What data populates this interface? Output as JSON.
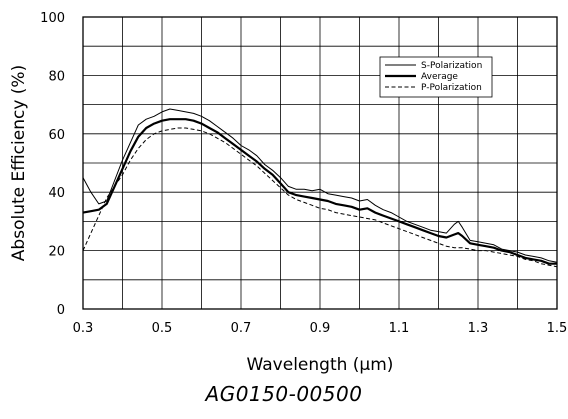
{
  "chart_data": {
    "type": "line",
    "title": "",
    "xlabel": "Wavelength (µm)",
    "ylabel": "Absolute Efficiency (%)",
    "xlim": [
      0.3,
      1.5
    ],
    "ylim": [
      0,
      100
    ],
    "xticks": [
      "0.3",
      "0.5",
      "0.7",
      "0.9",
      "1.1",
      "1.3",
      "1.5"
    ],
    "yticks": [
      "0",
      "20",
      "40",
      "60",
      "80",
      "100"
    ],
    "grid": true,
    "legend_position": "top-right",
    "series": [
      {
        "name": "S-Polarization",
        "style": "thin-solid",
        "x": [
          0.3,
          0.32,
          0.34,
          0.36,
          0.38,
          0.4,
          0.42,
          0.44,
          0.46,
          0.48,
          0.5,
          0.52,
          0.54,
          0.56,
          0.58,
          0.6,
          0.62,
          0.64,
          0.66,
          0.68,
          0.7,
          0.72,
          0.74,
          0.76,
          0.78,
          0.8,
          0.82,
          0.84,
          0.86,
          0.88,
          0.9,
          0.92,
          0.94,
          0.96,
          0.98,
          1.0,
          1.02,
          1.04,
          1.06,
          1.08,
          1.1,
          1.12,
          1.14,
          1.16,
          1.18,
          1.2,
          1.22,
          1.24,
          1.25,
          1.26,
          1.28,
          1.3,
          1.32,
          1.34,
          1.36,
          1.38,
          1.4,
          1.42,
          1.44,
          1.46,
          1.48,
          1.5
        ],
        "y": [
          45,
          40,
          36,
          37,
          44,
          51,
          57,
          63,
          65,
          66,
          67.5,
          68.5,
          68,
          67.5,
          67,
          66,
          64.5,
          62.5,
          60.5,
          58.5,
          56,
          54.5,
          52.5,
          49.5,
          47.5,
          45,
          42,
          41,
          41,
          40.5,
          41,
          39.5,
          39,
          38.5,
          38,
          37,
          37.5,
          35.5,
          34,
          33,
          31.5,
          30,
          29,
          28,
          27,
          26.5,
          26,
          29,
          30,
          28,
          23.5,
          23,
          22.5,
          22,
          20.5,
          20,
          19.5,
          18.5,
          18,
          17.5,
          16.5,
          16
        ]
      },
      {
        "name": "Average",
        "style": "thick-solid",
        "x": [
          0.3,
          0.32,
          0.34,
          0.36,
          0.38,
          0.4,
          0.42,
          0.44,
          0.46,
          0.48,
          0.5,
          0.52,
          0.54,
          0.56,
          0.58,
          0.6,
          0.62,
          0.64,
          0.66,
          0.68,
          0.7,
          0.72,
          0.74,
          0.76,
          0.78,
          0.8,
          0.82,
          0.84,
          0.86,
          0.88,
          0.9,
          0.92,
          0.94,
          0.96,
          0.98,
          1.0,
          1.02,
          1.04,
          1.06,
          1.08,
          1.1,
          1.12,
          1.14,
          1.16,
          1.18,
          1.2,
          1.22,
          1.24,
          1.25,
          1.26,
          1.28,
          1.3,
          1.32,
          1.34,
          1.36,
          1.38,
          1.4,
          1.42,
          1.44,
          1.46,
          1.48,
          1.5
        ],
        "y": [
          33,
          33.5,
          34,
          36,
          42,
          48,
          54,
          59,
          62,
          63.5,
          64.5,
          65,
          65,
          65,
          64.5,
          63.5,
          62,
          60.5,
          58.5,
          56.5,
          54.5,
          52.5,
          50.5,
          48,
          46,
          43,
          40,
          39,
          38.5,
          38,
          37.5,
          37,
          36,
          35.5,
          35,
          34,
          34.5,
          33,
          32,
          31,
          30,
          29,
          28,
          27,
          26,
          25,
          24.5,
          25.5,
          26,
          25,
          22.5,
          22,
          21.5,
          21,
          20,
          19.5,
          18.5,
          17.5,
          17,
          16.5,
          15.5,
          15.5
        ]
      },
      {
        "name": "P-Polarization",
        "style": "dashed",
        "x": [
          0.3,
          0.32,
          0.34,
          0.36,
          0.38,
          0.4,
          0.42,
          0.44,
          0.46,
          0.48,
          0.5,
          0.52,
          0.54,
          0.56,
          0.58,
          0.6,
          0.62,
          0.64,
          0.66,
          0.68,
          0.7,
          0.72,
          0.74,
          0.76,
          0.78,
          0.8,
          0.82,
          0.84,
          0.86,
          0.88,
          0.9,
          0.92,
          0.94,
          0.96,
          0.98,
          1.0,
          1.02,
          1.04,
          1.06,
          1.08,
          1.1,
          1.12,
          1.14,
          1.16,
          1.18,
          1.2,
          1.22,
          1.24,
          1.25,
          1.26,
          1.28,
          1.3,
          1.32,
          1.34,
          1.36,
          1.38,
          1.4,
          1.42,
          1.44,
          1.46,
          1.48,
          1.5
        ],
        "y": [
          20,
          26,
          32,
          38,
          42,
          46,
          51,
          55,
          58,
          60,
          61,
          61.5,
          62,
          62,
          61.5,
          61,
          60,
          58.5,
          57,
          55,
          53,
          51,
          49,
          46.5,
          44,
          41.5,
          39,
          37.5,
          36.5,
          35.5,
          34.5,
          34,
          33,
          32.5,
          32,
          31.5,
          31,
          30.5,
          29.5,
          28.5,
          27.5,
          26.5,
          25.5,
          24.5,
          23.5,
          22.5,
          21.5,
          21,
          21,
          21,
          20.5,
          20,
          20,
          19.5,
          19,
          18.5,
          18,
          17,
          16.5,
          15.5,
          15,
          14.5
        ]
      }
    ]
  },
  "caption": "AG0150-00500"
}
